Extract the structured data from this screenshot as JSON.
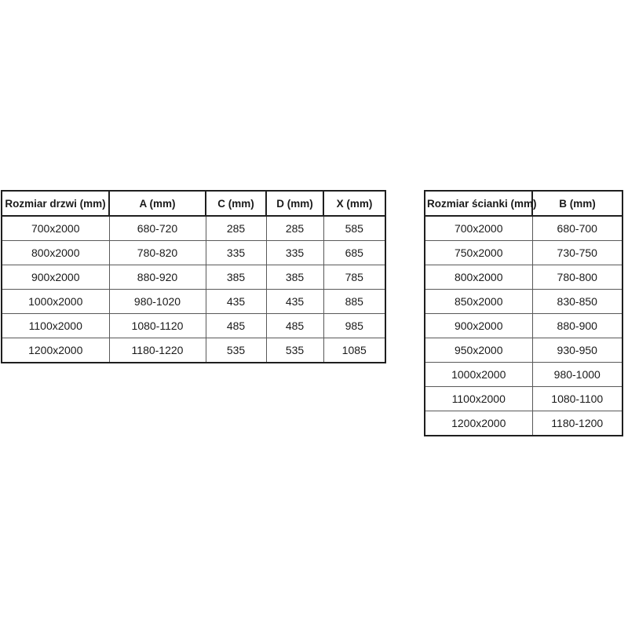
{
  "doors_table": {
    "headers": [
      "Rozmiar drzwi (mm)",
      "A (mm)",
      "C (mm)",
      "D (mm)",
      "X (mm)"
    ],
    "rows": [
      [
        "700x2000",
        "680-720",
        "285",
        "285",
        "585"
      ],
      [
        "800x2000",
        "780-820",
        "335",
        "335",
        "685"
      ],
      [
        "900x2000",
        "880-920",
        "385",
        "385",
        "785"
      ],
      [
        "1000x2000",
        "980-1020",
        "435",
        "435",
        "885"
      ],
      [
        "1100x2000",
        "1080-1120",
        "485",
        "485",
        "985"
      ],
      [
        "1200x2000",
        "1180-1220",
        "535",
        "535",
        "1085"
      ]
    ]
  },
  "wall_table": {
    "headers": [
      "Rozmiar ścianki (mm)",
      "B (mm)"
    ],
    "rows": [
      [
        "700x2000",
        "680-700"
      ],
      [
        "750x2000",
        "730-750"
      ],
      [
        "800x2000",
        "780-800"
      ],
      [
        "850x2000",
        "830-850"
      ],
      [
        "900x2000",
        "880-900"
      ],
      [
        "950x2000",
        "930-950"
      ],
      [
        "1000x2000",
        "980-1000"
      ],
      [
        "1100x2000",
        "1080-1100"
      ],
      [
        "1200x2000",
        "1180-1200"
      ]
    ]
  },
  "colors": {
    "background": "#ffffff",
    "text": "#1a1a1a",
    "border_outer": "#1f1f1f",
    "border_inner": "#595959"
  }
}
